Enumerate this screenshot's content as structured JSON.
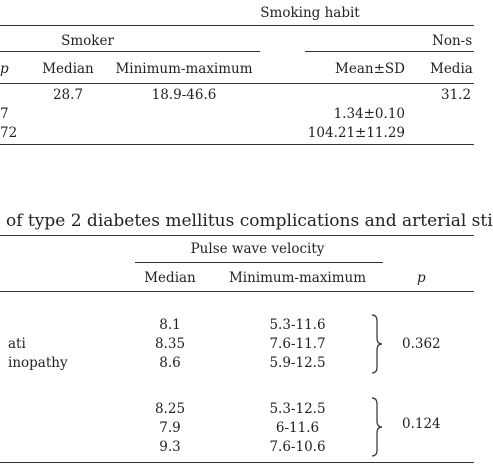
{
  "table1": {
    "group_header": "Smoking habit",
    "smoker_header": "Smoker",
    "nonsmoker_header": "Non-s",
    "left_cut_col": "p",
    "col_median": "Median",
    "col_minmax": "Minimum-maximum",
    "col_meansd": "Mean±SD",
    "col_median_cut": "Media",
    "row1": {
      "median": "28.7",
      "minmax": "18.9-46.6",
      "median_cut": "31.2"
    },
    "row2": {
      "left_cut": "7",
      "meansd": "1.34±0.10"
    },
    "row3": {
      "left_cut": "72",
      "meansd": "104.21±11.29"
    }
  },
  "caption": "of type 2 diabetes mellitus complications and arterial sti",
  "table2": {
    "group_header": "Pulse wave velocity",
    "col_median": "Median",
    "col_minmax": "Minimum-maximum",
    "col_p": "p",
    "group1": {
      "rows": [
        {
          "label": "",
          "median": "8.1",
          "minmax": "5.3-11.6"
        },
        {
          "label": "ati",
          "median": "8.35",
          "minmax": "7.6-11.7"
        },
        {
          "label": "inopathy",
          "median": "8.6",
          "minmax": "5.9-12.5"
        }
      ],
      "p": "0.362"
    },
    "group2": {
      "rows": [
        {
          "median": "8.25",
          "minmax": "5.3-12.5"
        },
        {
          "median": "7.9",
          "minmax": "6-11.6"
        },
        {
          "median": "9.3",
          "minmax": "7.6-10.6"
        }
      ],
      "p": "0.124"
    }
  }
}
